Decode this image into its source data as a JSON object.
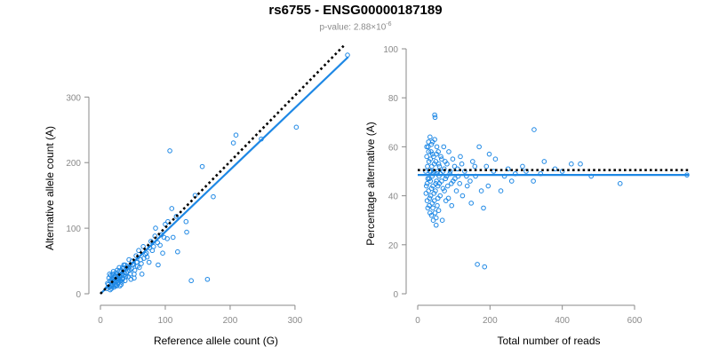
{
  "title": "rs6755 - ENSG00000187189",
  "subtitle": {
    "prefix": "p-value: ",
    "mantissa": "2.88×10",
    "exponent": "-6"
  },
  "colors": {
    "points": "#1e88e5",
    "fit": "#1e88e5",
    "reference": "#000000",
    "axis": "#8a8a8a"
  },
  "chart_data": [
    {
      "type": "scatter",
      "xlabel": "Reference allele count (G)",
      "ylabel": "Alternative allele count (A)",
      "xlim": [
        0,
        370
      ],
      "ylim": [
        0,
        360
      ],
      "xticks": [
        0,
        100,
        200,
        300
      ],
      "yticks": [
        0,
        100,
        200,
        300
      ],
      "grid": false,
      "legend": "none",
      "fit_line": {
        "x": [
          0,
          382
        ],
        "y": [
          0,
          361
        ]
      },
      "reference_line": {
        "x": [
          0,
          375
        ],
        "y": [
          0,
          378
        ]
      },
      "points": [
        [
          12,
          14
        ],
        [
          14,
          10
        ],
        [
          15,
          20
        ],
        [
          16,
          12
        ],
        [
          17,
          18
        ],
        [
          18,
          22
        ],
        [
          19,
          15
        ],
        [
          20,
          25
        ],
        [
          21,
          10
        ],
        [
          22,
          20
        ],
        [
          23,
          28
        ],
        [
          24,
          18
        ],
        [
          25,
          22
        ],
        [
          26,
          30
        ],
        [
          27,
          16
        ],
        [
          28,
          24
        ],
        [
          29,
          34
        ],
        [
          30,
          20
        ],
        [
          31,
          26
        ],
        [
          32,
          14
        ],
        [
          33,
          30
        ],
        [
          34,
          22
        ],
        [
          35,
          38
        ],
        [
          36,
          28
        ],
        [
          38,
          20
        ],
        [
          40,
          32
        ],
        [
          41,
          42
        ],
        [
          43,
          26
        ],
        [
          45,
          36
        ],
        [
          47,
          22
        ],
        [
          49,
          50
        ],
        [
          50,
          44
        ],
        [
          52,
          30
        ],
        [
          55,
          58
        ],
        [
          57,
          42
        ],
        [
          59,
          66
        ],
        [
          62,
          52
        ],
        [
          64,
          30
        ],
        [
          66,
          72
        ],
        [
          69,
          60
        ],
        [
          72,
          56
        ],
        [
          75,
          48
        ],
        [
          78,
          80
        ],
        [
          80,
          66
        ],
        [
          84,
          88
        ],
        [
          85,
          100
        ],
        [
          89,
          44
        ],
        [
          92,
          74
        ],
        [
          96,
          62
        ],
        [
          98,
          86
        ],
        [
          103,
          84
        ],
        [
          104,
          110
        ],
        [
          107,
          218
        ],
        [
          110,
          130
        ],
        [
          112,
          86
        ],
        [
          117,
          118
        ],
        [
          119,
          64
        ],
        [
          132,
          110
        ],
        [
          133,
          94
        ],
        [
          140,
          20
        ],
        [
          146,
          150
        ],
        [
          157,
          194
        ],
        [
          165,
          22
        ],
        [
          174,
          148
        ],
        [
          205,
          230
        ],
        [
          209,
          242
        ],
        [
          248,
          236
        ],
        [
          302,
          254
        ],
        [
          381,
          364
        ],
        [
          10,
          8
        ],
        [
          11,
          16
        ],
        [
          13,
          24
        ],
        [
          15,
          6
        ],
        [
          16,
          28
        ],
        [
          18,
          12
        ],
        [
          19,
          30
        ],
        [
          20,
          34
        ],
        [
          21,
          22
        ],
        [
          22,
          14
        ],
        [
          23,
          26
        ],
        [
          24,
          32
        ],
        [
          25,
          12
        ],
        [
          26,
          36
        ],
        [
          27,
          24
        ],
        [
          28,
          18
        ],
        [
          29,
          40
        ],
        [
          30,
          28
        ],
        [
          31,
          20
        ],
        [
          32,
          36
        ],
        [
          33,
          18
        ],
        [
          34,
          30
        ],
        [
          35,
          24
        ],
        [
          36,
          44
        ],
        [
          37,
          32
        ],
        [
          39,
          26
        ],
        [
          42,
          34
        ],
        [
          44,
          40
        ],
        [
          46,
          30
        ],
        [
          48,
          38
        ],
        [
          51,
          46
        ],
        [
          53,
          36
        ],
        [
          56,
          48
        ],
        [
          60,
          40
        ],
        [
          63,
          46
        ],
        [
          67,
          54
        ],
        [
          71,
          62
        ],
        [
          76,
          70
        ],
        [
          82,
          72
        ],
        [
          88,
          78
        ],
        [
          94,
          90
        ],
        [
          100,
          106
        ],
        [
          14,
          30
        ],
        [
          17,
          8
        ],
        [
          20,
          18
        ],
        [
          23,
          12
        ],
        [
          26,
          20
        ],
        [
          30,
          12
        ],
        [
          34,
          40
        ],
        [
          38,
          44
        ],
        [
          44,
          52
        ],
        [
          52,
          24
        ]
      ]
    },
    {
      "type": "scatter",
      "xlabel": "Total number of reads",
      "ylabel": "Percentage alternative (A)",
      "xlim": [
        0,
        750
      ],
      "ylim": [
        0,
        100
      ],
      "xticks": [
        0,
        200,
        400,
        600
      ],
      "yticks": [
        0,
        20,
        40,
        60,
        80,
        100
      ],
      "grid": false,
      "legend": "none",
      "fit_line": {
        "x": [
          0,
          750
        ],
        "y": [
          48.5,
          48.5
        ]
      },
      "reference_line": {
        "x": [
          0,
          750
        ],
        "y": [
          50.5,
          50.5
        ]
      },
      "points": [
        [
          22,
          50
        ],
        [
          24,
          44
        ],
        [
          25,
          56
        ],
        [
          26,
          38
        ],
        [
          27,
          52
        ],
        [
          28,
          47
        ],
        [
          29,
          60
        ],
        [
          30,
          42
        ],
        [
          31,
          54
        ],
        [
          32,
          36
        ],
        [
          33,
          50
        ],
        [
          34,
          64
        ],
        [
          35,
          46
        ],
        [
          36,
          40
        ],
        [
          37,
          58
        ],
        [
          38,
          32
        ],
        [
          39,
          52
        ],
        [
          40,
          48
        ],
        [
          41,
          62
        ],
        [
          42,
          44
        ],
        [
          43,
          30
        ],
        [
          44,
          56
        ],
        [
          45,
          50
        ],
        [
          46,
          38
        ],
        [
          47,
          73
        ],
        [
          48,
          72
        ],
        [
          49,
          42
        ],
        [
          50,
          54
        ],
        [
          51,
          28
        ],
        [
          52,
          46
        ],
        [
          53,
          60
        ],
        [
          54,
          36
        ],
        [
          55,
          50
        ],
        [
          56,
          44
        ],
        [
          57,
          58
        ],
        [
          58,
          34
        ],
        [
          59,
          48
        ],
        [
          60,
          52
        ],
        [
          62,
          40
        ],
        [
          64,
          56
        ],
        [
          66,
          46
        ],
        [
          68,
          30
        ],
        [
          70,
          50
        ],
        [
          72,
          60
        ],
        [
          74,
          42
        ],
        [
          76,
          54
        ],
        [
          78,
          38
        ],
        [
          80,
          48
        ],
        [
          83,
          44
        ],
        [
          86,
          58
        ],
        [
          90,
          50
        ],
        [
          94,
          36
        ],
        [
          98,
          46
        ],
        [
          102,
          52
        ],
        [
          107,
          42
        ],
        [
          112,
          48
        ],
        [
          118,
          56
        ],
        [
          124,
          40
        ],
        [
          130,
          50
        ],
        [
          137,
          44
        ],
        [
          145,
          46
        ],
        [
          152,
          54
        ],
        [
          160,
          48
        ],
        [
          165,
          12
        ],
        [
          170,
          60
        ],
        [
          176,
          42
        ],
        [
          182,
          35
        ],
        [
          185,
          11
        ],
        [
          190,
          52
        ],
        [
          198,
          57
        ],
        [
          210,
          50
        ],
        [
          230,
          42
        ],
        [
          250,
          51
        ],
        [
          270,
          49
        ],
        [
          300,
          50
        ],
        [
          320,
          46
        ],
        [
          322,
          67
        ],
        [
          350,
          54
        ],
        [
          380,
          51
        ],
        [
          400,
          50
        ],
        [
          425,
          53
        ],
        [
          450,
          53
        ],
        [
          480,
          48
        ],
        [
          560,
          45
        ],
        [
          745,
          48.5
        ],
        [
          23,
          41
        ],
        [
          25,
          60
        ],
        [
          26,
          45
        ],
        [
          28,
          35
        ],
        [
          30,
          58
        ],
        [
          32,
          47
        ],
        [
          33,
          39
        ],
        [
          35,
          55
        ],
        [
          36,
          50
        ],
        [
          38,
          43
        ],
        [
          40,
          37
        ],
        [
          41,
          57
        ],
        [
          43,
          49
        ],
        [
          45,
          41
        ],
        [
          46,
          53
        ],
        [
          48,
          33
        ],
        [
          50,
          45
        ],
        [
          52,
          57
        ],
        [
          54,
          49
        ],
        [
          56,
          39
        ],
        [
          58,
          53
        ],
        [
          60,
          45
        ],
        [
          63,
          49
        ],
        [
          66,
          55
        ],
        [
          70,
          43
        ],
        [
          73,
          51
        ],
        [
          77,
          47
        ],
        [
          81,
          53
        ],
        [
          85,
          39
        ],
        [
          89,
          49
        ],
        [
          93,
          45
        ],
        [
          97,
          55
        ],
        [
          103,
          47
        ],
        [
          110,
          51
        ],
        [
          116,
          45
        ],
        [
          122,
          53
        ],
        [
          135,
          48
        ],
        [
          148,
          37
        ],
        [
          158,
          52
        ],
        [
          195,
          44
        ],
        [
          215,
          55
        ],
        [
          240,
          48
        ],
        [
          260,
          46
        ],
        [
          290,
          52
        ],
        [
          340,
          49
        ],
        [
          30,
          62
        ],
        [
          34,
          33
        ],
        [
          38,
          61
        ],
        [
          42,
          35
        ],
        [
          47,
          63
        ],
        [
          51,
          31
        ]
      ]
    }
  ]
}
